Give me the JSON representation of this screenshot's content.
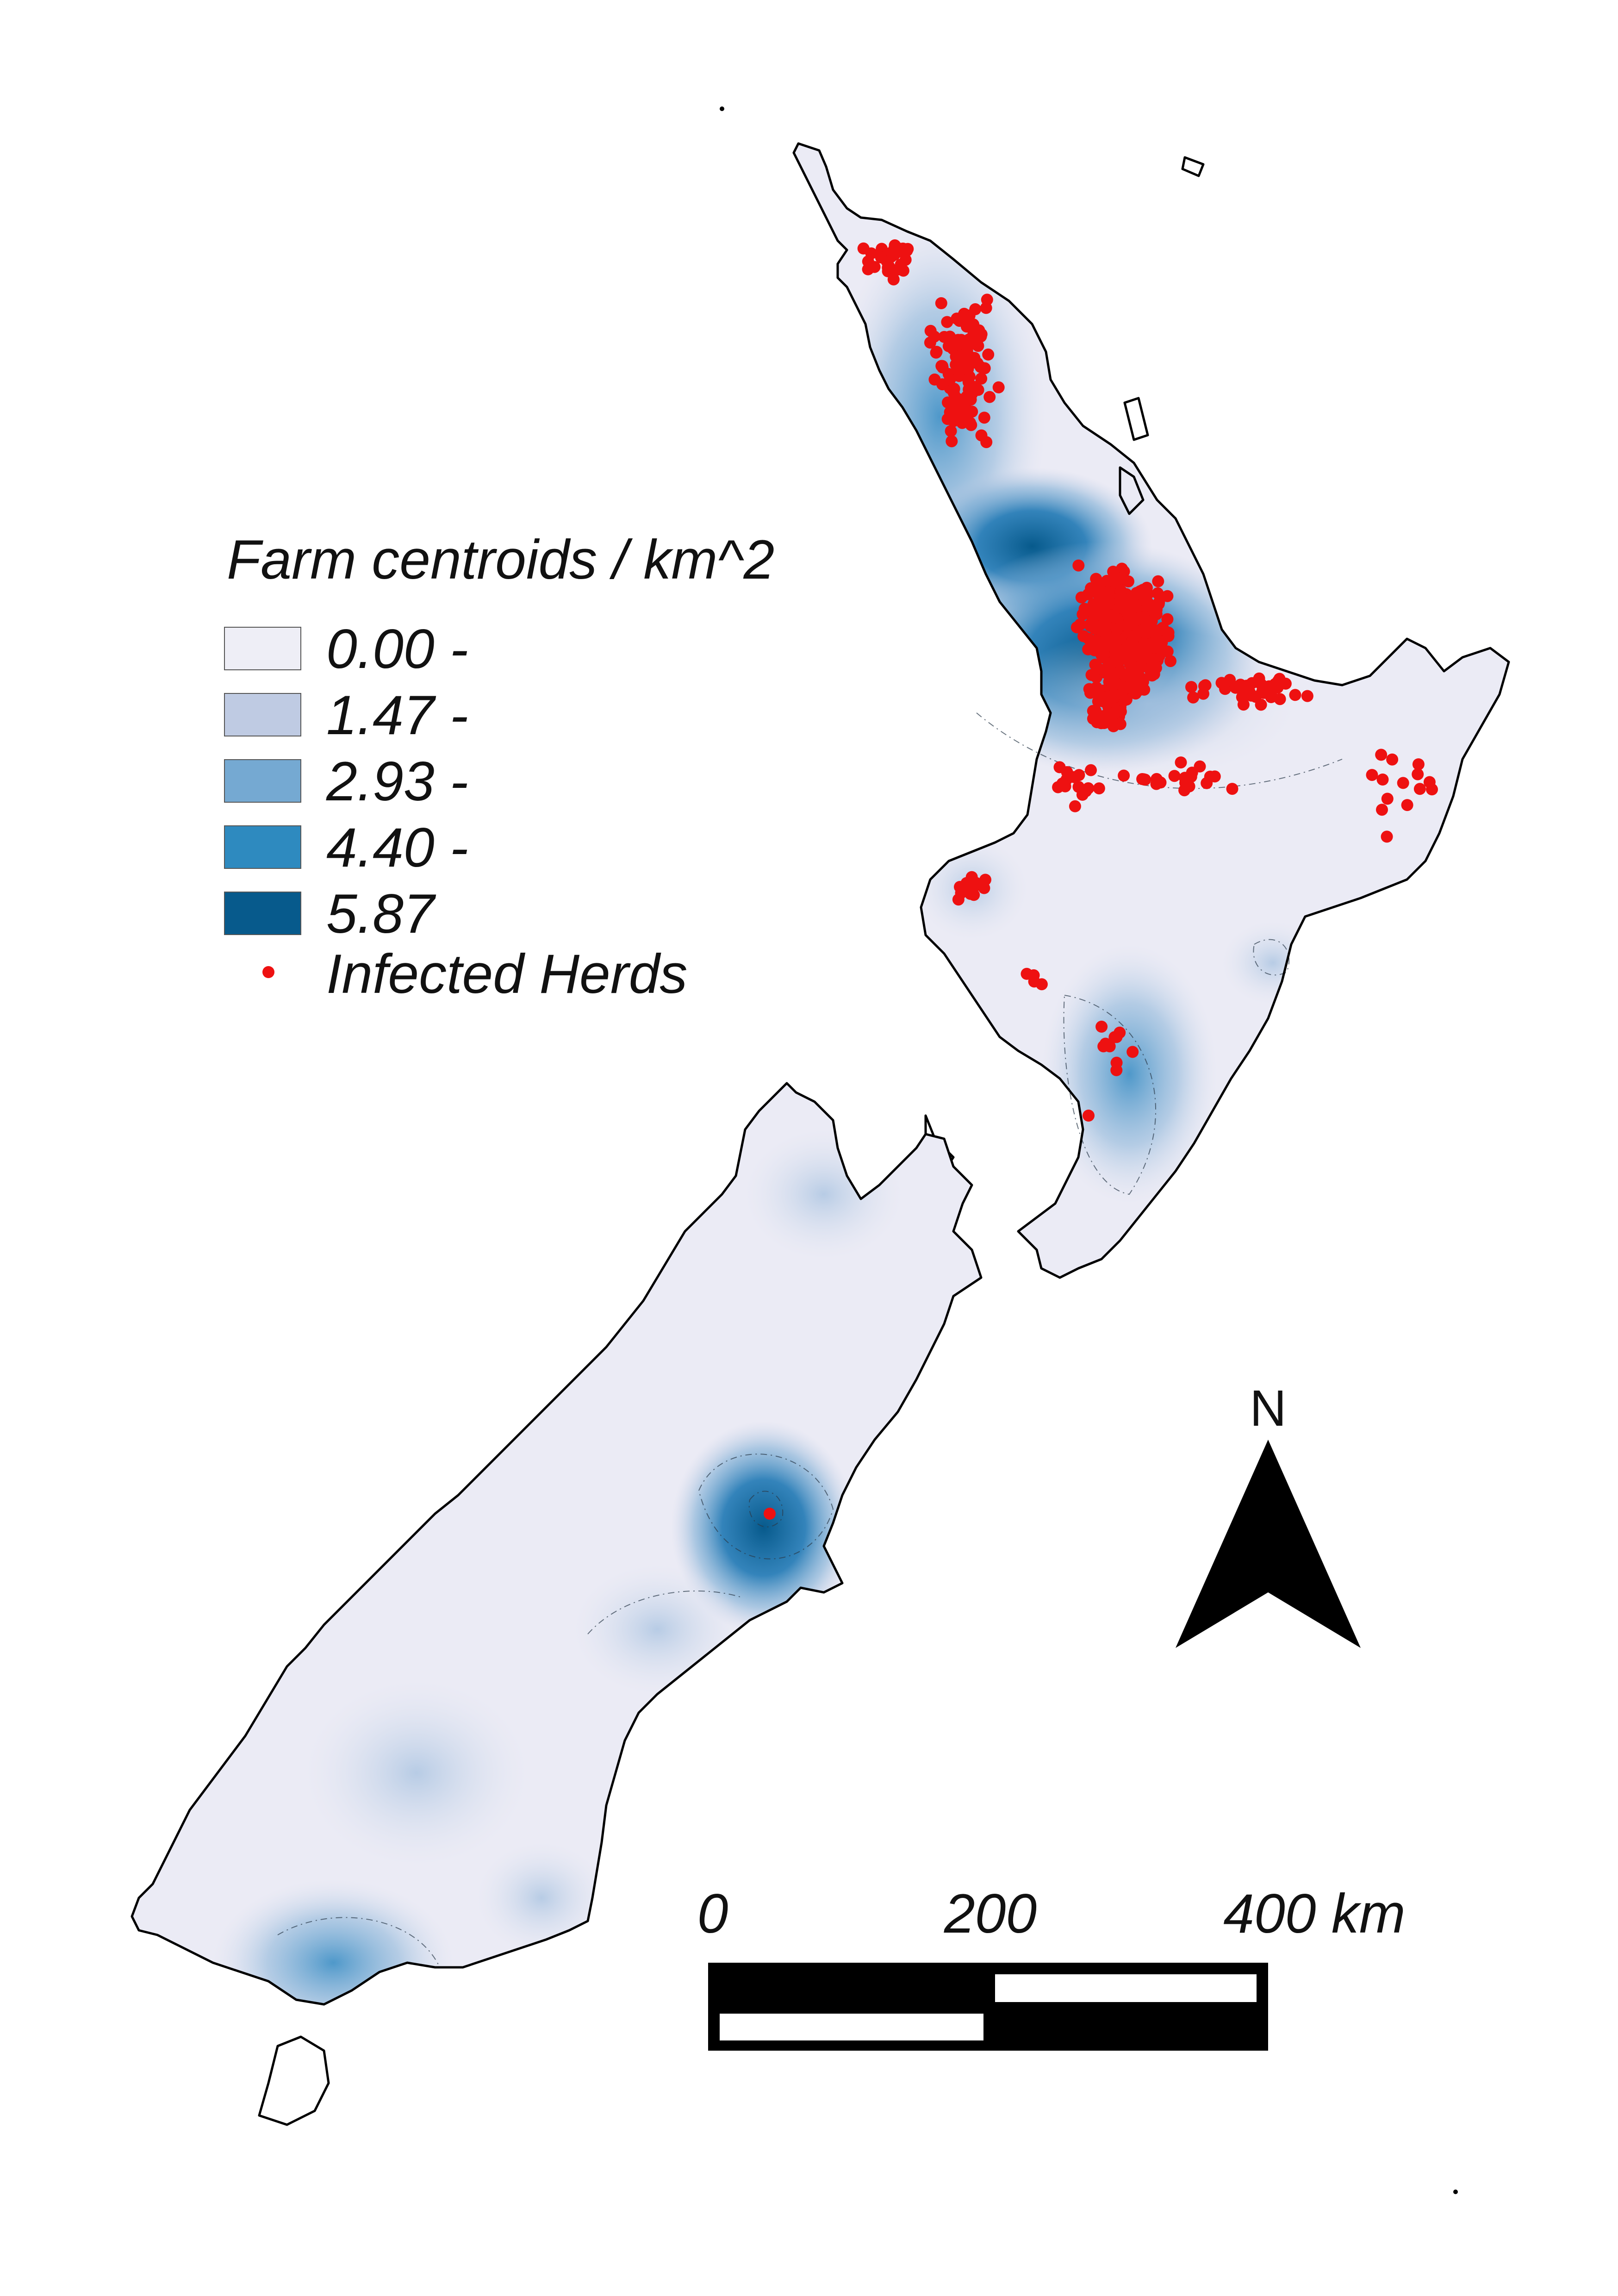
{
  "legend": {
    "title": "Farm centroids / km^2",
    "classes": [
      {
        "label": "0.00 -",
        "color": "#eeeef6"
      },
      {
        "label": "1.47 -",
        "color": "#bfcbe3"
      },
      {
        "label": "2.93 -",
        "color": "#75a9d2"
      },
      {
        "label": "4.40 -",
        "color": "#2e8abf"
      },
      {
        "label": "5.87",
        "color": "#075a8c"
      }
    ],
    "infected_label": "Infected Herds",
    "infected_color": "#ee1111"
  },
  "north_arrow": {
    "label": "N"
  },
  "scale_bar": {
    "labels": [
      "0",
      "200",
      "400 km"
    ],
    "values_km": [
      0,
      200,
      400
    ]
  },
  "colors": {
    "land_low": "#ebebf5",
    "coast": "#000000",
    "high_density": "#075a8c"
  }
}
